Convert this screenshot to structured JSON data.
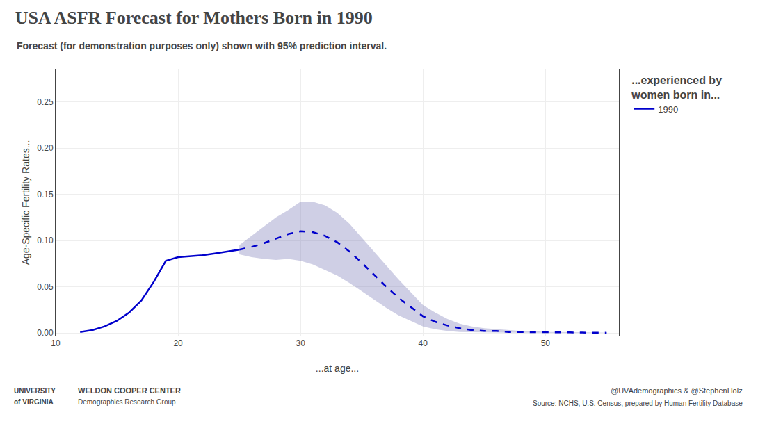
{
  "chart_data": {
    "type": "line",
    "title": "USA ASFR Forecast for Mothers Born in 1990",
    "subtitle": "Forecast (for demonstration purposes only) shown with 95% prediction interval.",
    "x_label": "...at age...",
    "y_label": "Age-Specific Fertility Rates...",
    "series": [
      {
        "name": "1990",
        "color": "#0000cc",
        "line_style": "solid",
        "x": [
          12,
          13,
          14,
          15,
          16,
          17,
          18,
          19,
          20,
          21,
          22,
          23,
          24,
          25
        ],
        "values": [
          0.001,
          0.003,
          0.007,
          0.013,
          0.022,
          0.035,
          0.055,
          0.078,
          0.082,
          0.083,
          0.084,
          0.086,
          0.088,
          0.09
        ]
      },
      {
        "color": "#0000cc",
        "line_style": "dashed",
        "x": [
          25,
          26,
          27,
          28,
          29,
          30,
          31,
          32,
          33,
          34,
          35,
          36,
          37,
          38,
          39,
          40,
          41,
          42,
          43,
          44,
          45,
          46,
          47,
          48,
          49,
          50,
          51,
          52,
          53,
          54,
          55
        ],
        "values": [
          0.09,
          0.093,
          0.097,
          0.102,
          0.107,
          0.11,
          0.109,
          0.105,
          0.098,
          0.088,
          0.076,
          0.063,
          0.05,
          0.038,
          0.028,
          0.018,
          0.012,
          0.008,
          0.005,
          0.003,
          0.002,
          0.002,
          0.001,
          0.001,
          0.001,
          0.001,
          0.0005,
          0.0005,
          0.0003,
          0.0002,
          0.0001
        ]
      }
    ],
    "interval": {
      "color": "#8080bb",
      "x": [
        25,
        26,
        27,
        28,
        29,
        30,
        31,
        32,
        33,
        34,
        35,
        36,
        37,
        38,
        39,
        40,
        41,
        42,
        43,
        44,
        45,
        46,
        47,
        48,
        49,
        50,
        51,
        52,
        53,
        54,
        55
      ],
      "upper": [
        0.095,
        0.105,
        0.115,
        0.125,
        0.133,
        0.142,
        0.142,
        0.138,
        0.13,
        0.118,
        0.103,
        0.088,
        0.073,
        0.058,
        0.044,
        0.03,
        0.022,
        0.015,
        0.01,
        0.007,
        0.005,
        0.004,
        0.003,
        0.002,
        0.002,
        0.001,
        0.001,
        0.001,
        0.0005,
        0.0003,
        0.0002
      ],
      "lower": [
        0.085,
        0.082,
        0.08,
        0.079,
        0.08,
        0.078,
        0.074,
        0.068,
        0.062,
        0.054,
        0.045,
        0.036,
        0.027,
        0.019,
        0.013,
        0.007,
        0.004,
        0.002,
        0.001,
        0.001,
        0.0005,
        0.0003,
        0.0002,
        0.0001,
        0.0001,
        0.0001,
        0.0,
        0.0,
        0.0,
        0.0,
        0.0
      ]
    },
    "xlim": [
      10,
      56
    ],
    "ylim": [
      -0.003,
      0.285
    ],
    "xticks": [
      10,
      20,
      30,
      40,
      50
    ],
    "yticks": [
      {
        "value": 0.0,
        "label": "0.00"
      },
      0.05,
      {
        "value": 0.1,
        "label": "0.10"
      },
      0.15,
      {
        "value": 0.2,
        "label": "0.20"
      },
      0.25
    ],
    "grid": true,
    "legend_title": [
      "...experienced by",
      "women born in..."
    ],
    "footer_left": [
      "UNIVERSITY",
      "of VIRGINIA",
      "WELDON COOPER CENTER",
      "Demographics Research Group"
    ],
    "footer_right": [
      "@UVAdemographics & @StephenHolz",
      "Source: NCHS, U.S. Census, prepared by Human Fertility Database"
    ]
  }
}
